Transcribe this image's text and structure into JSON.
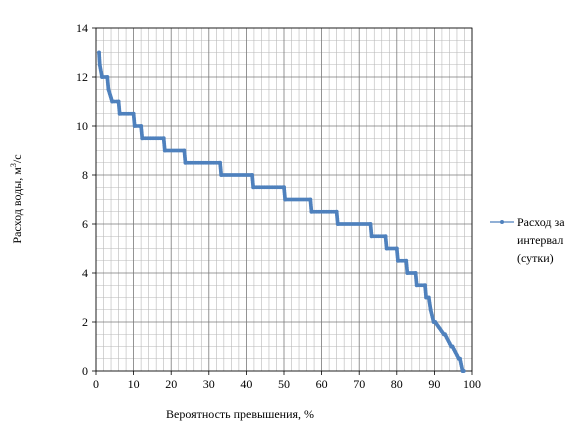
{
  "chart_data": {
    "type": "line",
    "title": "",
    "xlabel": "Вероятность превышения, %",
    "ylabel": "Расход воды, м3/с",
    "ylabel_parts": {
      "main": "Расход воды, м",
      "sup": "3",
      "tail": "/с"
    },
    "xlim": [
      0,
      100
    ],
    "ylim": [
      0,
      14
    ],
    "xticks": [
      0,
      10,
      20,
      30,
      40,
      50,
      60,
      70,
      80,
      90,
      100
    ],
    "yticks": [
      0,
      2,
      4,
      6,
      8,
      10,
      12,
      14
    ],
    "grid": true,
    "legend_position": "right",
    "series": [
      {
        "name": "Расход за интервал (сутки)",
        "color": "#4f81bd",
        "x": [
          0.8,
          1.0,
          1.6,
          3.0,
          3.3,
          4.3,
          6.0,
          6.3,
          10.0,
          10.3,
          12.0,
          12.3,
          18.0,
          18.3,
          23.5,
          23.8,
          33.0,
          33.3,
          41.5,
          41.8,
          50.0,
          50.3,
          57.0,
          57.3,
          64.0,
          64.3,
          73.0,
          73.3,
          77.0,
          77.3,
          80.0,
          80.3,
          82.5,
          82.8,
          85.0,
          85.3,
          87.5,
          87.8,
          88.5,
          89.0,
          89.8,
          90.2,
          92.5,
          92.8,
          94.5,
          94.8,
          96.5,
          96.8,
          97.5,
          97.8
        ],
        "y": [
          13.0,
          12.5,
          12.0,
          12.0,
          11.5,
          11.0,
          11.0,
          10.5,
          10.5,
          10.0,
          10.0,
          9.5,
          9.5,
          9.0,
          9.0,
          8.5,
          8.5,
          8.0,
          8.0,
          7.5,
          7.5,
          7.0,
          7.0,
          6.5,
          6.5,
          6.0,
          6.0,
          5.5,
          5.5,
          5.0,
          5.0,
          4.5,
          4.5,
          4.0,
          4.0,
          3.5,
          3.5,
          3.0,
          3.0,
          2.5,
          2.0,
          2.0,
          1.5,
          1.5,
          1.0,
          1.0,
          0.5,
          0.5,
          0.0,
          0.0
        ]
      }
    ],
    "legend": {
      "lines": [
        "Расход за",
        "интервал",
        "(сутки)"
      ]
    }
  }
}
